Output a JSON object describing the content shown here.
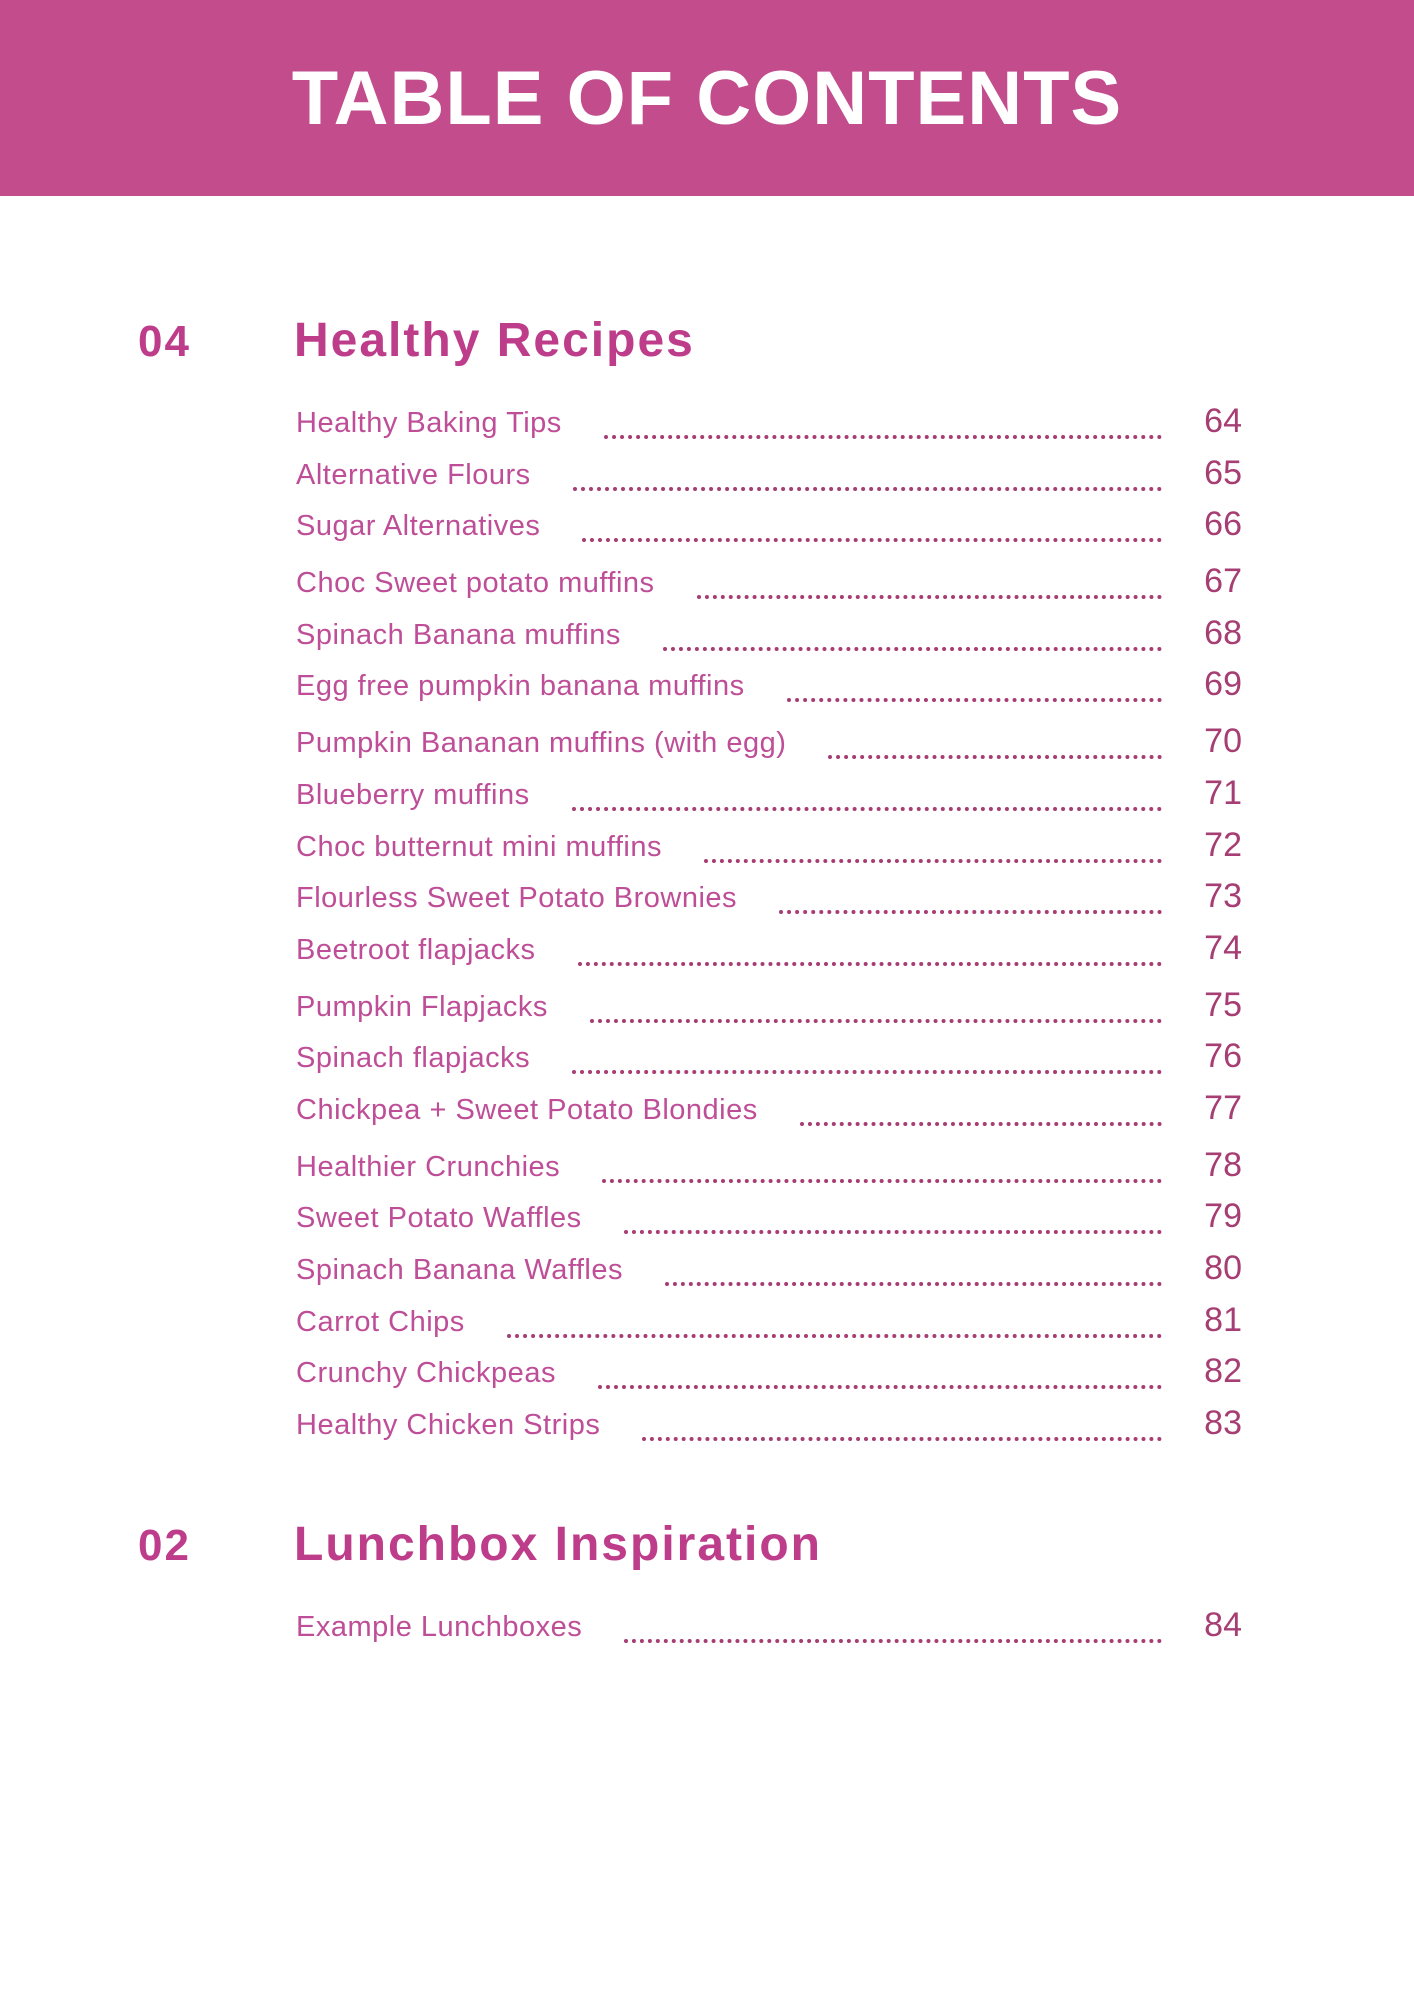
{
  "page": {
    "title": "TABLE OF CONTENTS"
  },
  "colors": {
    "banner_bg": "#C24C8C",
    "banner_text": "#FFFFFF",
    "heading": "#BE3D8B",
    "item_text": "#BE4E97",
    "leader": "#A63D73"
  },
  "sections": [
    {
      "number": "04",
      "title": "Healthy Recipes",
      "group_breaks": [
        3,
        6,
        11,
        14
      ],
      "entries": [
        {
          "label": "Healthy Baking Tips",
          "page": "64"
        },
        {
          "label": "Alternative Flours",
          "page": "65"
        },
        {
          "label": "Sugar Alternatives",
          "page": "66"
        },
        {
          "label": "Choc Sweet potato muffins",
          "page": "67"
        },
        {
          "label": "Spinach Banana muffins",
          "page": "68"
        },
        {
          "label": "Egg free pumpkin banana muffins",
          "page": "69"
        },
        {
          "label": "Pumpkin Bananan muffins (with egg)",
          "page": "70"
        },
        {
          "label": "Blueberry muffins",
          "page": "71"
        },
        {
          "label": "Choc butternut mini muffins",
          "page": "72"
        },
        {
          "label": "Flourless Sweet Potato Brownies",
          "page": "73"
        },
        {
          "label": "Beetroot flapjacks",
          "page": "74"
        },
        {
          "label": "Pumpkin Flapjacks",
          "page": "75"
        },
        {
          "label": "Spinach flapjacks",
          "page": "76"
        },
        {
          "label": "Chickpea + Sweet Potato Blondies",
          "page": "77"
        },
        {
          "label": "Healthier Crunchies",
          "page": "78"
        },
        {
          "label": "Sweet Potato Waffles",
          "page": "79"
        },
        {
          "label": "Spinach Banana Waffles",
          "page": "80"
        },
        {
          "label": "Carrot Chips",
          "page": "81"
        },
        {
          "label": "Crunchy Chickpeas",
          "page": "82"
        },
        {
          "label": "Healthy Chicken Strips",
          "page": "83"
        }
      ]
    },
    {
      "number": "02",
      "title": "Lunchbox Inspiration",
      "group_breaks": [],
      "entries": [
        {
          "label": "Example Lunchboxes",
          "page": "84"
        }
      ]
    }
  ]
}
